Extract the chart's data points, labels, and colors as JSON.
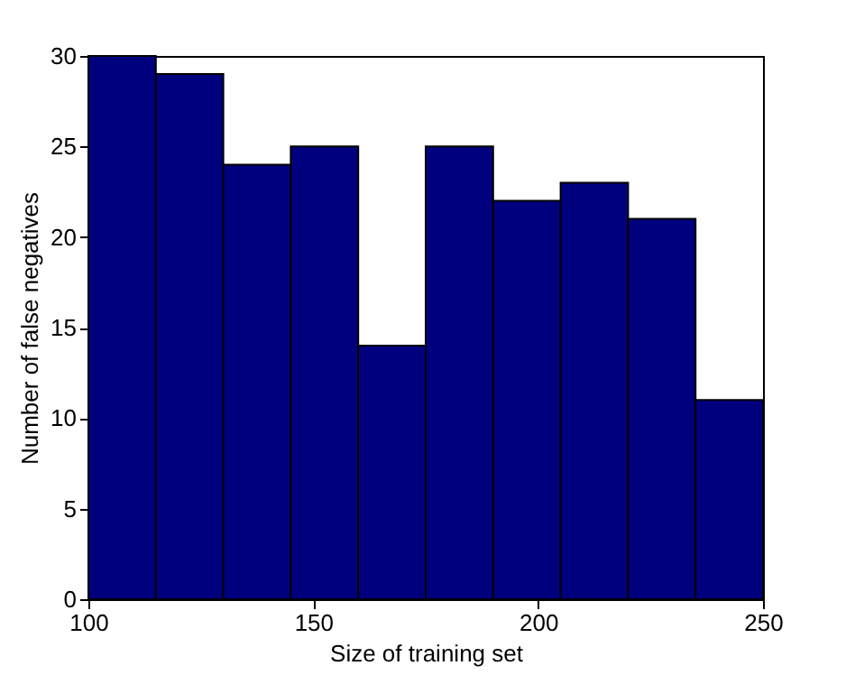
{
  "chart_data": {
    "type": "histogram",
    "xlabel": "Size of training set",
    "ylabel": "Number of false negatives",
    "bins": [
      100,
      115,
      130,
      145,
      160,
      175,
      190,
      205,
      220,
      235,
      250
    ],
    "values": [
      30,
      29,
      24,
      25,
      14,
      25,
      22,
      23,
      21,
      11
    ],
    "color": "#00007f",
    "xlim": [
      100,
      250
    ],
    "xticks": [
      100,
      150,
      200,
      250
    ],
    "ylim": [
      0,
      30
    ],
    "yticks": [
      0,
      5,
      10,
      15,
      20,
      25,
      30
    ],
    "grid": false
  }
}
